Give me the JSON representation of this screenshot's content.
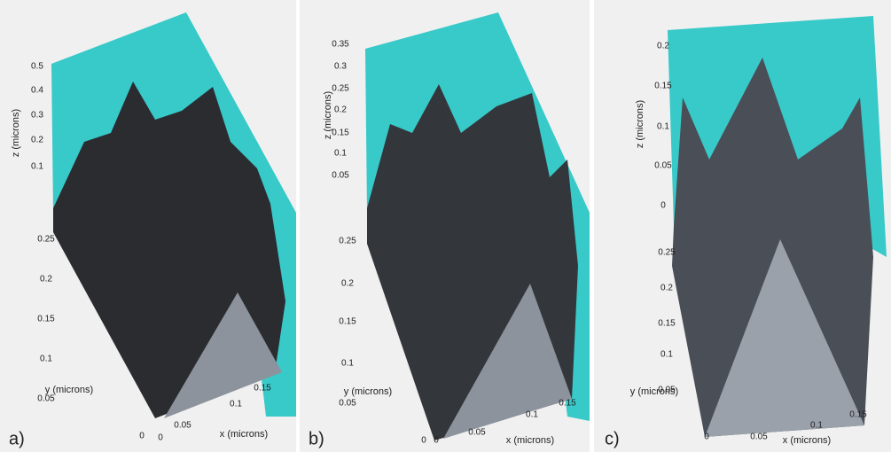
{
  "panels": [
    {
      "label": "a)",
      "z_label": "z (microns)",
      "y_label": "y (microns)",
      "x_label": "x (microns)",
      "z_ticks": [
        0.5,
        0.4,
        0.3,
        0.2,
        0.1
      ],
      "y_ticks": [
        0.25,
        0.2,
        0.15,
        0.1,
        0.05,
        0
      ],
      "x_ticks": [
        0,
        0.05,
        0.1,
        0.15
      ]
    },
    {
      "label": "b)",
      "z_label": "z (microns)",
      "y_label": "y (microns)",
      "x_label": "x (microns)",
      "z_ticks": [
        0.35,
        0.3,
        0.25,
        0.2,
        0.15,
        0.1,
        0.05
      ],
      "y_ticks": [
        0.25,
        0.2,
        0.15,
        0.1,
        0.05,
        0
      ],
      "x_ticks": [
        0,
        0.05,
        0.1,
        0.15
      ]
    },
    {
      "label": "c)",
      "z_label": "z (microns)",
      "y_label": "y (microns)",
      "x_label": "x (microns)",
      "z_ticks": [
        0.2,
        0.15,
        0.1,
        0.05,
        0
      ],
      "y_ticks": [
        0.25,
        0.2,
        0.15,
        0.1,
        0.05,
        0
      ],
      "x_ticks": [
        0.05,
        0.1,
        0.15
      ]
    }
  ]
}
